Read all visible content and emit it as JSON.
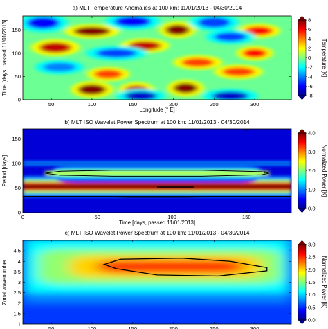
{
  "chart_data": [
    {
      "type": "heatmap",
      "title": "a) MLT Temperature Anomalies at 100 km: 11/01/2013 - 04/30/2014",
      "xlabel": "Longitude [° E]",
      "ylabel": "Time [days, passed 11/01/2013]",
      "xlim": [
        15,
        345
      ],
      "ylim": [
        0,
        180
      ],
      "xticks": [
        50,
        100,
        150,
        200,
        250,
        300
      ],
      "yticks": [
        0,
        50,
        100,
        150
      ],
      "colorbar": {
        "label": "Temperature [K]",
        "min": -8,
        "max": 8,
        "ticks": [
          -8,
          -6,
          -4,
          -2,
          0,
          2,
          4,
          6,
          8
        ],
        "colormap": "jet"
      },
      "features": [
        {
          "sign": "positive",
          "x": 100,
          "y": 147,
          "width": 45,
          "height": 6,
          "amplitude": 8
        },
        {
          "sign": "positive",
          "x": 205,
          "y": 150,
          "width": 30,
          "height": 7,
          "amplitude": 8
        },
        {
          "sign": "positive",
          "x": 305,
          "y": 148,
          "width": 35,
          "height": 6,
          "amplitude": 6
        },
        {
          "sign": "positive",
          "x": 55,
          "y": 112,
          "width": 40,
          "height": 7,
          "amplitude": 7
        },
        {
          "sign": "positive",
          "x": 165,
          "y": 116,
          "width": 40,
          "height": 6,
          "amplitude": 7
        },
        {
          "sign": "positive",
          "x": 300,
          "y": 100,
          "width": 30,
          "height": 6,
          "amplitude": 6
        },
        {
          "sign": "positive",
          "x": 230,
          "y": 80,
          "width": 40,
          "height": 6,
          "amplitude": 5
        },
        {
          "sign": "positive",
          "x": 120,
          "y": 55,
          "width": 35,
          "height": 6,
          "amplitude": 5
        },
        {
          "sign": "positive",
          "x": 280,
          "y": 60,
          "width": 40,
          "height": 6,
          "amplitude": 5
        },
        {
          "sign": "positive",
          "x": 100,
          "y": 22,
          "width": 35,
          "height": 7,
          "amplitude": 8
        },
        {
          "sign": "positive",
          "x": 155,
          "y": 20,
          "width": 30,
          "height": 7,
          "amplitude": 7
        },
        {
          "sign": "positive",
          "x": 215,
          "y": 25,
          "width": 30,
          "height": 7,
          "amplitude": 8
        },
        {
          "sign": "negative",
          "x": 40,
          "y": 165,
          "width": 40,
          "height": 8,
          "amplitude": -6
        },
        {
          "sign": "negative",
          "x": 150,
          "y": 168,
          "width": 45,
          "height": 7,
          "amplitude": -6
        },
        {
          "sign": "negative",
          "x": 250,
          "y": 166,
          "width": 40,
          "height": 7,
          "amplitude": -5
        },
        {
          "sign": "negative",
          "x": 130,
          "y": 100,
          "width": 50,
          "height": 6,
          "amplitude": -5
        },
        {
          "sign": "negative",
          "x": 270,
          "y": 135,
          "width": 40,
          "height": 6,
          "amplitude": -5
        },
        {
          "sign": "negative",
          "x": 60,
          "y": 70,
          "width": 40,
          "height": 6,
          "amplitude": -4
        },
        {
          "sign": "negative",
          "x": 160,
          "y": 8,
          "width": 40,
          "height": 6,
          "amplitude": -7
        },
        {
          "sign": "negative",
          "x": 270,
          "y": 8,
          "width": 45,
          "height": 6,
          "amplitude": -7
        }
      ]
    },
    {
      "type": "heatmap",
      "title": "b) MLT ISO Wavelet Power Spectrum at 100 km: 11/01/2013 - 04/30/2014",
      "xlabel": "Time [days, passed 11/01/2013]",
      "ylabel": "Period [days]",
      "xlim": [
        0,
        180
      ],
      "ylim": [
        0,
        170
      ],
      "xticks": [
        0,
        50,
        100,
        150
      ],
      "yticks": [
        0,
        50,
        100,
        150
      ],
      "colorbar": {
        "label": "Normalized Power [K]",
        "min": 0.0,
        "max": 4.0,
        "ticks": [
          0.0,
          1.0,
          2.0,
          3.0,
          4.0
        ],
        "colormap": "jet"
      },
      "period_bands": [
        {
          "period": 53,
          "halfwidth": 9,
          "power": 4.0,
          "x_start": 0,
          "x_end": 180
        },
        {
          "period": 80,
          "halfwidth": 8,
          "power": 2.2,
          "x_start": 15,
          "x_end": 165
        },
        {
          "period": 100,
          "halfwidth": 3,
          "power": 1.1,
          "x_start": 0,
          "x_end": 180
        }
      ],
      "contours": [
        {
          "label": "?",
          "points": [
            [
              15,
              80
            ],
            [
              25,
              84
            ],
            [
              60,
              86
            ],
            [
              120,
              86
            ],
            [
              160,
              83
            ],
            [
              165,
              80
            ],
            [
              160,
              77
            ],
            [
              120,
              74
            ],
            [
              60,
              74
            ],
            [
              25,
              76
            ]
          ]
        },
        {
          "label": "",
          "points": [
            [
              90,
              52
            ],
            [
              115,
              52
            ]
          ]
        },
        {
          "label": "",
          "points": [
            [
              0,
              100
            ],
            [
              180,
              100
            ]
          ]
        },
        {
          "label": "",
          "points": [
            [
              0,
              33
            ],
            [
              40,
              33
            ],
            [
              70,
              31
            ],
            [
              110,
              31
            ],
            [
              150,
              33
            ],
            [
              180,
              33
            ]
          ]
        }
      ]
    },
    {
      "type": "heatmap",
      "title": "c) MLT ISO Wavelet Power Spectrum at 100 km: 11/01/2013 - 04/30/2014",
      "xlabel": "",
      "ylabel": "Zonal wavenumber",
      "xlim": [
        15,
        345
      ],
      "ylim": [
        1.0,
        5.0
      ],
      "xticks": [
        50,
        100,
        150,
        200,
        250,
        300
      ],
      "yticks": [
        1,
        1.5,
        2,
        2.5,
        3,
        3.5,
        4,
        4.5
      ],
      "colorbar": {
        "label": "Normalized Power [K]",
        "min": 0.0,
        "max": 3.0,
        "ticks": [
          0.0,
          0.5,
          1.0,
          1.5,
          2.0,
          2.5,
          3.0
        ],
        "colormap": "jet"
      },
      "band": {
        "center": 3.75,
        "halfwidth": 0.6,
        "peak_x": 205,
        "peak_power": 2.5
      },
      "contours": [
        {
          "label": "",
          "points": [
            [
              115,
              3.85
            ],
            [
              135,
              4.1
            ],
            [
              210,
              4.15
            ],
            [
              270,
              4.0
            ],
            [
              315,
              3.7
            ],
            [
              315,
              3.55
            ],
            [
              255,
              3.3
            ],
            [
              180,
              3.35
            ],
            [
              130,
              3.65
            ]
          ]
        }
      ]
    }
  ]
}
